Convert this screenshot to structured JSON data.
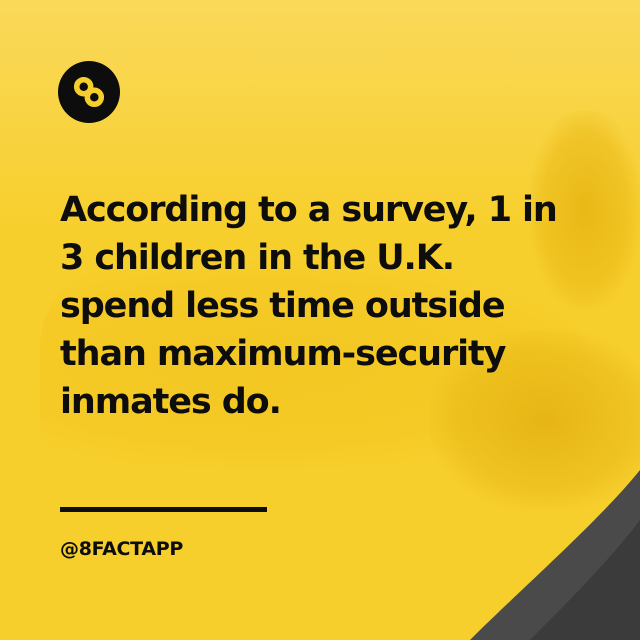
{
  "brand": {
    "logo_icon": "infinity-eight-icon",
    "background_color": "#f7cf2c",
    "text_color": "#0d0d0d",
    "corner_color": "#4a4a4a"
  },
  "post": {
    "headline": "According to a survey, 1 in\n3 children in the U.K.\nspend less time outside\nthan maximum-security\ninmates do.",
    "handle": "@8FACTAPP"
  }
}
